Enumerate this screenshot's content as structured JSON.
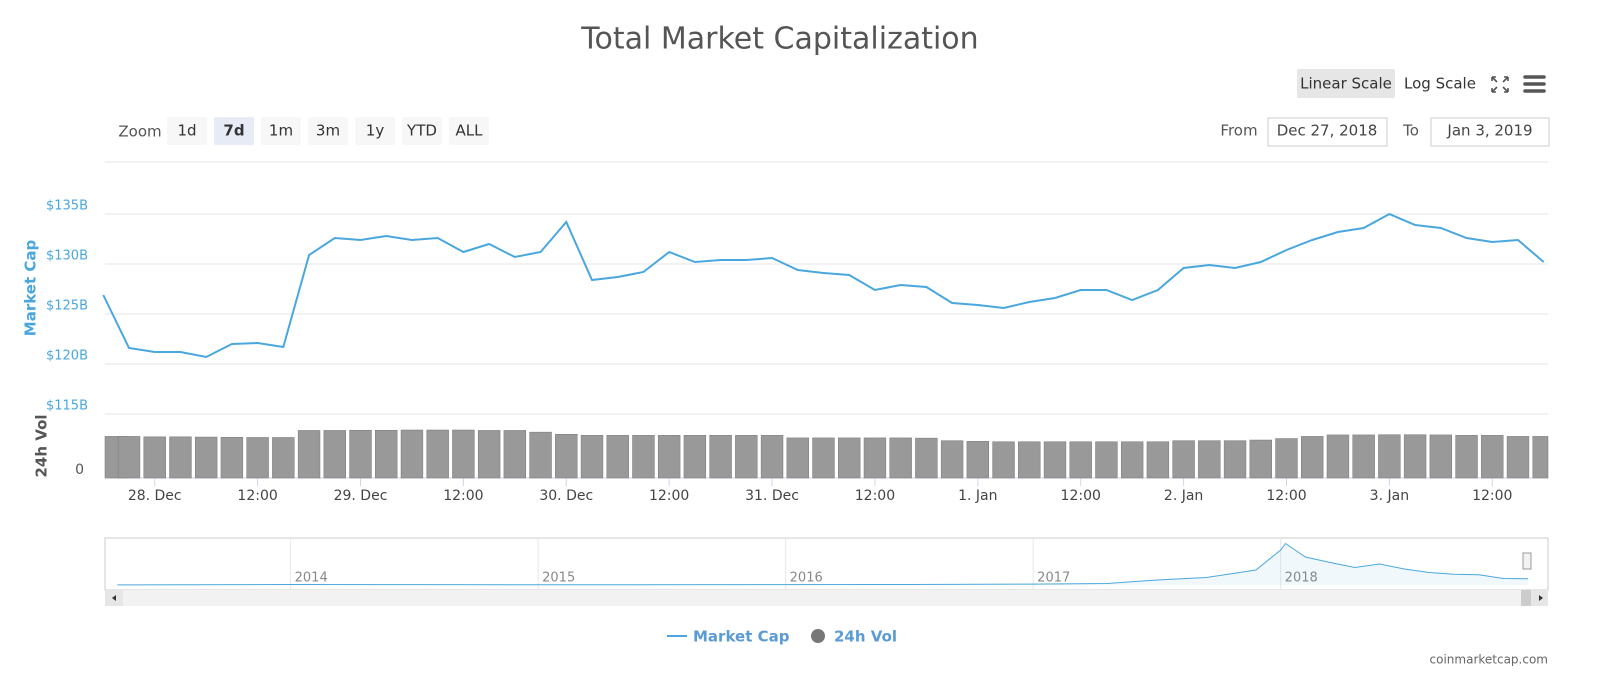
{
  "chart_data": {
    "type": "line",
    "title": "Total Market Capitalization",
    "y_label": "Market Cap",
    "y2_label": "24h Vol",
    "x": [
      -6,
      -3,
      0,
      3,
      6,
      9,
      12,
      15,
      18,
      21,
      24,
      27,
      30,
      33,
      36,
      39,
      42,
      45,
      48,
      51,
      54,
      57,
      60,
      63,
      66,
      69,
      72,
      75,
      78,
      81,
      84,
      87,
      90,
      93,
      96,
      99,
      102,
      105,
      108,
      111,
      114,
      117,
      120,
      123,
      126,
      129,
      132,
      135,
      138,
      141,
      144,
      147,
      150,
      153,
      156,
      159,
      162
    ],
    "xlim": [
      -5.8,
      162.5
    ],
    "xticks": [
      {
        "value": 0,
        "label": "28. Dec"
      },
      {
        "value": 12,
        "label": "12:00"
      },
      {
        "value": 24,
        "label": "29. Dec"
      },
      {
        "value": 36,
        "label": "12:00"
      },
      {
        "value": 48,
        "label": "30. Dec"
      },
      {
        "value": 60,
        "label": "12:00"
      },
      {
        "value": 72,
        "label": "31. Dec"
      },
      {
        "value": 84,
        "label": "12:00"
      },
      {
        "value": 96,
        "label": "1. Jan"
      },
      {
        "value": 108,
        "label": "12:00"
      },
      {
        "value": 120,
        "label": "2. Jan"
      },
      {
        "value": 132,
        "label": "12:00"
      },
      {
        "value": 144,
        "label": "3. Jan"
      },
      {
        "value": 156,
        "label": "12:00"
      }
    ],
    "ylim": [
      115,
      140
    ],
    "yticks": [
      {
        "value": 115,
        "label": "$115B"
      },
      {
        "value": 120,
        "label": "$120B"
      },
      {
        "value": 125,
        "label": "$125B"
      },
      {
        "value": 130,
        "label": "$130B"
      },
      {
        "value": 135,
        "label": "$135B"
      }
    ],
    "y2lim": [
      0,
      30
    ],
    "y2ticks": [
      0
    ],
    "grid": true,
    "series": [
      {
        "name": "Market Cap",
        "color": "#4aa7dd",
        "values": [
          126.9,
          121.6,
          121.2,
          121.2,
          120.7,
          122.0,
          122.1,
          121.7,
          130.9,
          132.6,
          132.4,
          132.8,
          132.4,
          132.6,
          131.2,
          132.0,
          130.7,
          131.2,
          134.2,
          128.4,
          128.7,
          129.2,
          131.2,
          130.2,
          130.4,
          130.4,
          130.6,
          129.4,
          129.1,
          128.9,
          127.4,
          127.9,
          127.7,
          126.1,
          125.9,
          125.6,
          126.2,
          126.6,
          127.4,
          127.4,
          126.4,
          127.4,
          129.6,
          129.9,
          129.6,
          130.2,
          131.4,
          132.4,
          133.2,
          133.6,
          135.0,
          133.9,
          133.6,
          132.6,
          132.2,
          132.4,
          130.2
        ]
      },
      {
        "name": "24h Vol",
        "color": "#777777",
        "axis": "y2",
        "values": [
          19.5,
          19.5,
          19.3,
          19.3,
          19.2,
          19.1,
          19.0,
          19.0,
          22.3,
          22.3,
          22.4,
          22.4,
          22.5,
          22.5,
          22.5,
          22.3,
          22.3,
          21.5,
          20.5,
          20.0,
          20.0,
          20.0,
          20.0,
          20.0,
          20.0,
          20.0,
          20.0,
          18.8,
          18.8,
          18.8,
          18.8,
          18.8,
          18.7,
          17.5,
          17.2,
          17.0,
          17.0,
          17.0,
          17.0,
          17.0,
          17.0,
          17.0,
          17.5,
          17.5,
          17.5,
          17.8,
          18.5,
          19.5,
          20.2,
          20.2,
          20.3,
          20.3,
          20.2,
          20.0,
          20.0,
          19.5,
          19.5
        ]
      }
    ],
    "navigator": {
      "x": [
        2013.3,
        2014.0,
        2014.5,
        2015.0,
        2016.0,
        2016.5,
        2017.0,
        2017.3,
        2017.5,
        2017.7,
        2017.9,
        2018.0,
        2018.02,
        2018.1,
        2018.2,
        2018.3,
        2018.4,
        2018.5,
        2018.6,
        2018.7,
        2018.8,
        2018.9,
        2019.0
      ],
      "values": [
        1.5,
        10,
        8,
        5,
        7,
        10,
        18,
        30,
        100,
        150,
        300,
        700,
        830,
        560,
        450,
        350,
        420,
        320,
        250,
        215,
        205,
        130,
        125
      ],
      "xlim": [
        2013.25,
        2019.08
      ],
      "ylim": [
        0,
        900
      ],
      "xticks": [
        2014,
        2015,
        2016,
        2017,
        2018
      ]
    }
  },
  "controls": {
    "zoom_label": "Zoom",
    "zoom_buttons": [
      "1d",
      "7d",
      "1m",
      "3m",
      "1y",
      "YTD",
      "ALL"
    ],
    "active_zoom": "7d",
    "scale_buttons": [
      "Linear Scale",
      "Log Scale"
    ],
    "active_scale": "Linear Scale",
    "from_label": "From",
    "from_value": "Dec 27, 2018",
    "to_label": "To",
    "to_value": "Jan 3, 2019"
  },
  "credit": "coinmarketcap.com"
}
